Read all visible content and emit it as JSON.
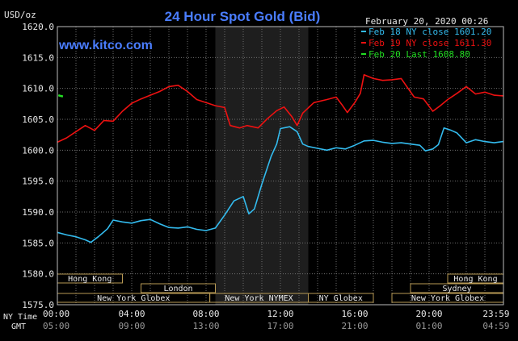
{
  "chart_data": {
    "type": "line",
    "title": "24 Hour Spot Gold (Bid)",
    "brand": "www.kitco.com",
    "date_label": "February 20, 2020 00:26",
    "ylabel": "USD/oz",
    "ylim": [
      1575.0,
      1620.0
    ],
    "y_ticks": [
      "1620.0",
      "1615.0",
      "1610.0",
      "1605.0",
      "1600.0",
      "1595.0",
      "1590.0",
      "1585.0",
      "1580.0",
      "1575.0"
    ],
    "x_ticks_ny": [
      "00:00",
      "04:00",
      "08:00",
      "12:00",
      "16:00",
      "20:00",
      "23:59"
    ],
    "x_ticks_gmt": [
      "05:00",
      "09:00",
      "13:00",
      "17:00",
      "21:00",
      "01:00",
      "04:59"
    ],
    "x_axis_label_ny": "NY Time",
    "x_axis_label_gmt": "GMT",
    "grid": true,
    "highlight_hours": [
      8.5,
      13.5
    ],
    "legend_position": "top-right",
    "series": [
      {
        "name": "Feb 18 NY close 1601.20",
        "color": "#33bbee",
        "points": [
          [
            0.0,
            1586.7
          ],
          [
            0.5,
            1586.3
          ],
          [
            1.0,
            1586.0
          ],
          [
            1.5,
            1585.5
          ],
          [
            1.8,
            1585.1
          ],
          [
            2.2,
            1586.0
          ],
          [
            2.7,
            1587.3
          ],
          [
            3.0,
            1588.7
          ],
          [
            3.5,
            1588.4
          ],
          [
            4.0,
            1588.2
          ],
          [
            4.5,
            1588.6
          ],
          [
            5.0,
            1588.8
          ],
          [
            5.5,
            1588.1
          ],
          [
            6.0,
            1587.5
          ],
          [
            6.5,
            1587.4
          ],
          [
            7.0,
            1587.6
          ],
          [
            7.5,
            1587.2
          ],
          [
            8.0,
            1587.0
          ],
          [
            8.5,
            1587.4
          ],
          [
            9.0,
            1589.5
          ],
          [
            9.5,
            1591.8
          ],
          [
            10.0,
            1592.5
          ],
          [
            10.3,
            1589.7
          ],
          [
            10.6,
            1590.5
          ],
          [
            11.0,
            1594.5
          ],
          [
            11.5,
            1599.0
          ],
          [
            11.8,
            1601.0
          ],
          [
            12.0,
            1603.5
          ],
          [
            12.5,
            1603.8
          ],
          [
            12.9,
            1603.0
          ],
          [
            13.2,
            1601.0
          ],
          [
            13.5,
            1600.6
          ],
          [
            14.0,
            1600.3
          ],
          [
            14.5,
            1600.0
          ],
          [
            15.0,
            1600.4
          ],
          [
            15.5,
            1600.2
          ],
          [
            16.0,
            1600.8
          ],
          [
            16.5,
            1601.5
          ],
          [
            17.0,
            1601.6
          ],
          [
            17.5,
            1601.3
          ],
          [
            18.0,
            1601.1
          ],
          [
            18.5,
            1601.2
          ],
          [
            19.0,
            1601.0
          ],
          [
            19.5,
            1600.8
          ],
          [
            19.8,
            1599.9
          ],
          [
            20.2,
            1600.2
          ],
          [
            20.5,
            1600.9
          ],
          [
            20.8,
            1603.6
          ],
          [
            21.2,
            1603.2
          ],
          [
            21.5,
            1602.8
          ],
          [
            22.0,
            1601.2
          ],
          [
            22.5,
            1601.7
          ],
          [
            23.0,
            1601.4
          ],
          [
            23.5,
            1601.2
          ],
          [
            23.98,
            1601.4
          ]
        ]
      },
      {
        "name": "Feb 19 NY close 1611.30",
        "color": "#ee1111",
        "points": [
          [
            0.0,
            1601.3
          ],
          [
            0.5,
            1602.0
          ],
          [
            1.0,
            1603.0
          ],
          [
            1.5,
            1604.0
          ],
          [
            2.0,
            1603.2
          ],
          [
            2.5,
            1604.8
          ],
          [
            3.0,
            1604.7
          ],
          [
            3.5,
            1606.3
          ],
          [
            4.0,
            1607.6
          ],
          [
            4.5,
            1608.3
          ],
          [
            5.0,
            1608.9
          ],
          [
            5.5,
            1609.5
          ],
          [
            6.0,
            1610.3
          ],
          [
            6.5,
            1610.5
          ],
          [
            7.0,
            1609.5
          ],
          [
            7.5,
            1608.2
          ],
          [
            8.0,
            1607.7
          ],
          [
            8.5,
            1607.2
          ],
          [
            9.0,
            1606.9
          ],
          [
            9.3,
            1604.0
          ],
          [
            9.8,
            1603.6
          ],
          [
            10.2,
            1604.0
          ],
          [
            10.8,
            1603.6
          ],
          [
            11.3,
            1605.1
          ],
          [
            11.8,
            1606.4
          ],
          [
            12.2,
            1607.0
          ],
          [
            12.6,
            1605.5
          ],
          [
            12.9,
            1604.0
          ],
          [
            13.2,
            1606.0
          ],
          [
            13.8,
            1607.7
          ],
          [
            14.5,
            1608.2
          ],
          [
            15.0,
            1608.6
          ],
          [
            15.3,
            1607.4
          ],
          [
            15.6,
            1606.1
          ],
          [
            16.0,
            1607.7
          ],
          [
            16.3,
            1609.2
          ],
          [
            16.5,
            1612.2
          ],
          [
            17.0,
            1611.6
          ],
          [
            17.5,
            1611.3
          ],
          [
            18.0,
            1611.4
          ],
          [
            18.5,
            1611.6
          ],
          [
            18.8,
            1610.3
          ],
          [
            19.2,
            1608.6
          ],
          [
            19.7,
            1608.3
          ],
          [
            20.2,
            1606.3
          ],
          [
            20.6,
            1607.2
          ],
          [
            21.0,
            1608.2
          ],
          [
            21.5,
            1609.2
          ],
          [
            22.0,
            1610.3
          ],
          [
            22.5,
            1609.1
          ],
          [
            23.0,
            1609.4
          ],
          [
            23.5,
            1608.9
          ],
          [
            23.98,
            1608.8
          ]
        ]
      },
      {
        "name": "Feb 20 Last 1608.80",
        "color": "#22dd22",
        "points": [
          [
            0.05,
            1608.9
          ],
          [
            0.15,
            1608.8
          ],
          [
            0.3,
            1608.7
          ]
        ]
      }
    ],
    "sessions": [
      {
        "label": "Hong Kong",
        "start": 0.0,
        "end": 3.5,
        "row": 0
      },
      {
        "label": "London",
        "start": 4.5,
        "end": 8.5,
        "row": 1
      },
      {
        "label": "New York Globex",
        "start": 0.0,
        "end": 8.2,
        "row": 2
      },
      {
        "label": "New York NYMEX",
        "start": 8.2,
        "end": 13.5,
        "row": 2
      },
      {
        "label": "NY Globex",
        "start": 13.5,
        "end": 17.0,
        "row": 2
      },
      {
        "label": "Hong Kong",
        "start": 21.0,
        "end": 24.0,
        "row": 0
      },
      {
        "label": "Sydney",
        "start": 19.0,
        "end": 24.0,
        "row": 1
      },
      {
        "label": "New York Globex",
        "start": 18.0,
        "end": 24.0,
        "row": 2
      }
    ]
  }
}
